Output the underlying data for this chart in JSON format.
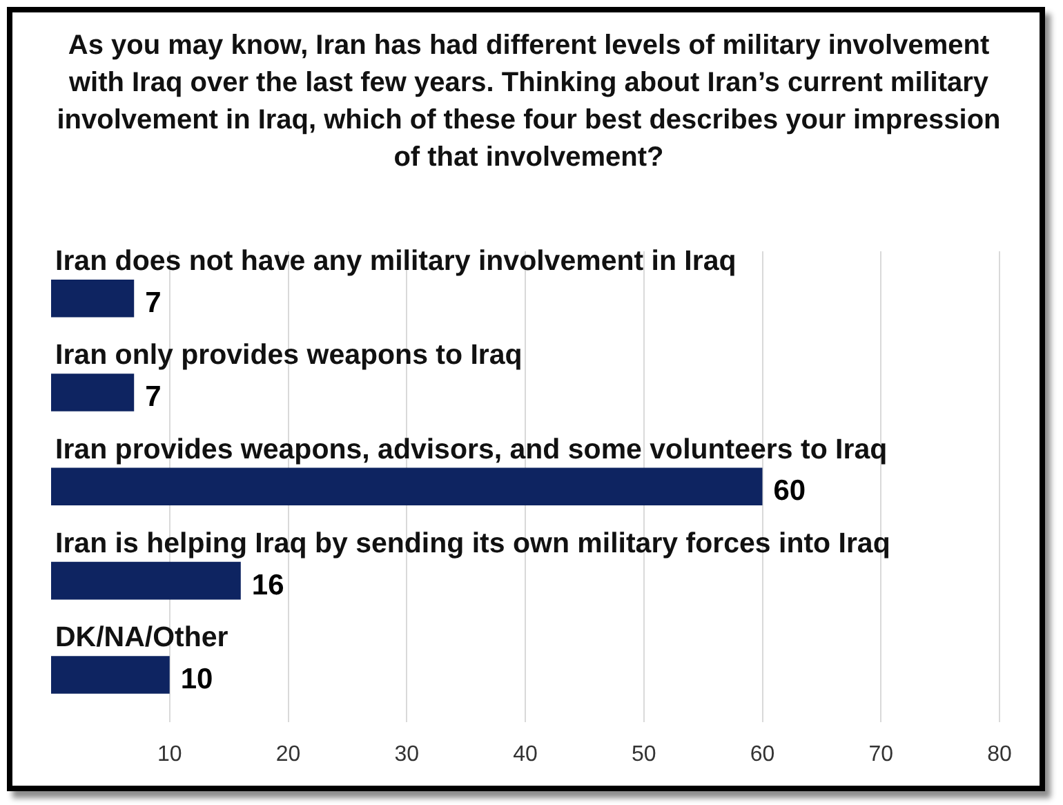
{
  "chart_data": {
    "type": "bar",
    "orientation": "horizontal",
    "title": "As you may know, Iran has had different levels of military involvement with Iraq over the last few years. Thinking about Iran’s current military involvement in Iraq, which of these four best describes your impression of that involvement?",
    "categories": [
      "Iran does not have any military involvement in Iraq",
      "Iran only provides weapons to Iraq",
      "Iran provides weapons, advisors, and some volunteers to Iraq",
      "Iran is helping Iraq by sending its own military forces into Iraq",
      "DK/NA/Other"
    ],
    "values": [
      7,
      7,
      60,
      16,
      10
    ],
    "color": "#0e2461",
    "xlim": [
      0,
      80
    ],
    "xticks": [
      10,
      20,
      30,
      40,
      50,
      60,
      70,
      80
    ],
    "grid": "x",
    "data_labels": true,
    "legend": false
  }
}
